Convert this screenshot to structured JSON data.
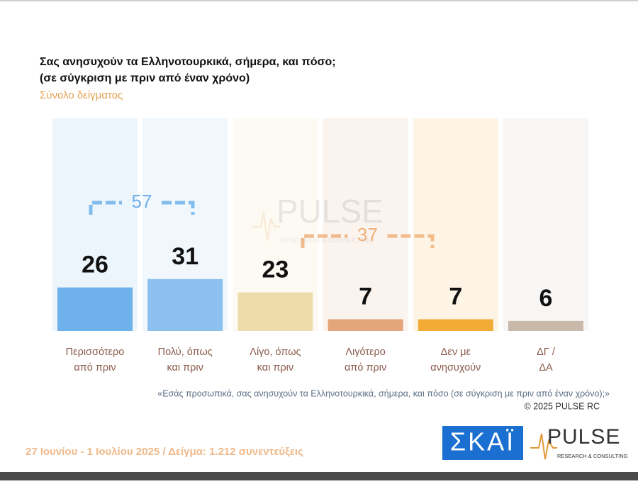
{
  "chart_data": {
    "type": "bar",
    "title": [
      "Σας ανησυχούν τα Ελληνοτουρκικά, σήμερα, και πόσο;",
      "(σε σύγκριση με πριν από έναν χρόνο)"
    ],
    "subtitle": "Σύνολο δείγματος",
    "categories": [
      [
        "Περισσότερο",
        "από πριν"
      ],
      [
        "Πολύ, όπως",
        "και πριν"
      ],
      [
        "Λίγο, όπως",
        "και πριν"
      ],
      [
        "Λιγότερο",
        "από πριν"
      ],
      [
        "Δεν με",
        "ανησυχούν"
      ],
      [
        "ΔΓ /",
        "ΔΑ"
      ]
    ],
    "values": [
      26,
      31,
      23,
      7,
      7,
      6
    ],
    "colors": [
      "#6fb1ea",
      "#8cc0ee",
      "#eddcaa",
      "#e3a57a",
      "#f2ac35",
      "#c9b9aa"
    ],
    "brackets": [
      57,
      37
    ],
    "bracket_colors": [
      "#6fb1ea",
      "#f0b07a"
    ],
    "question": "«Εσάς προσωπικά, σας ανησυχούν τα Ελληνοτουρκικά, σήμερα, και πόσο (σε σύγκριση με πριν από έναν χρόνο);»",
    "copyright": "©  2025  PULSE RC",
    "fieldwork": "27 Ιουνίου - 1 Ιουλίου 2025  /  Δείγμα:  1.212 συνεντεύξεις",
    "logo_skai": "ΣΚΑΪ",
    "logo_pulse": "PULSE",
    "logo_pulse_sub": "RESEARCH & CONSULTING"
  }
}
